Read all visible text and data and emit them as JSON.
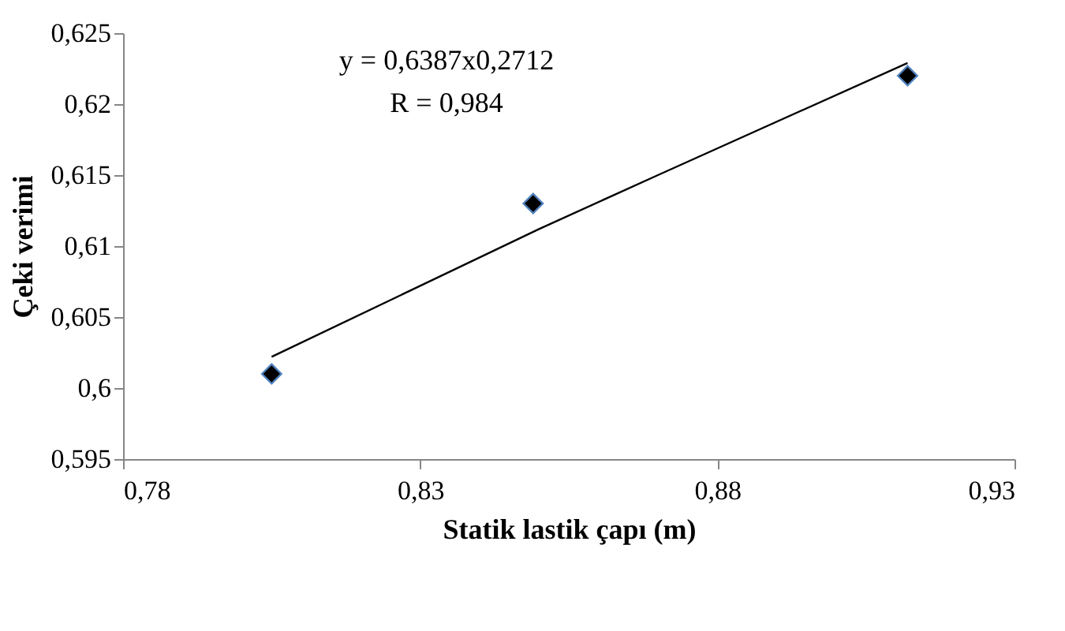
{
  "chart_data": {
    "type": "scatter",
    "xlabel": "Statik lastik çapı (m)",
    "ylabel": "Çeki verimi",
    "xlim": [
      0.78,
      0.93
    ],
    "xticks": [
      {
        "value": 0.78,
        "label": "0,78"
      },
      {
        "value": 0.83,
        "label": "0,83"
      },
      {
        "value": 0.88,
        "label": "0,88"
      },
      {
        "value": 0.93,
        "label": "0,93"
      }
    ],
    "ylim": [
      0.595,
      0.625
    ],
    "yticks": [
      {
        "value": 0.595,
        "label": "0,595"
      },
      {
        "value": 0.6,
        "label": "0,6"
      },
      {
        "value": 0.605,
        "label": "0,605"
      },
      {
        "value": 0.61,
        "label": "0,61"
      },
      {
        "value": 0.615,
        "label": "0,615"
      },
      {
        "value": 0.62,
        "label": "0,62"
      },
      {
        "value": 0.625,
        "label": "0,625"
      }
    ],
    "grid": false,
    "legend": false,
    "marker": "diamond",
    "series": [
      {
        "color": "#000000",
        "x": [
          0.805,
          0.849,
          0.912
        ],
        "values": [
          0.601,
          0.613,
          0.622
        ]
      },
      {
        "type": "line",
        "color": "#000000",
        "marker": "none",
        "line_style": "solid",
        "x": [
          0.805,
          0.83,
          0.85,
          0.87,
          0.912
        ],
        "values": [
          0.6022,
          0.6072,
          0.6112,
          0.615,
          0.6229
        ]
      }
    ],
    "annotations": [
      "y = 0,6387x0,2712",
      "R = 0,984"
    ]
  }
}
